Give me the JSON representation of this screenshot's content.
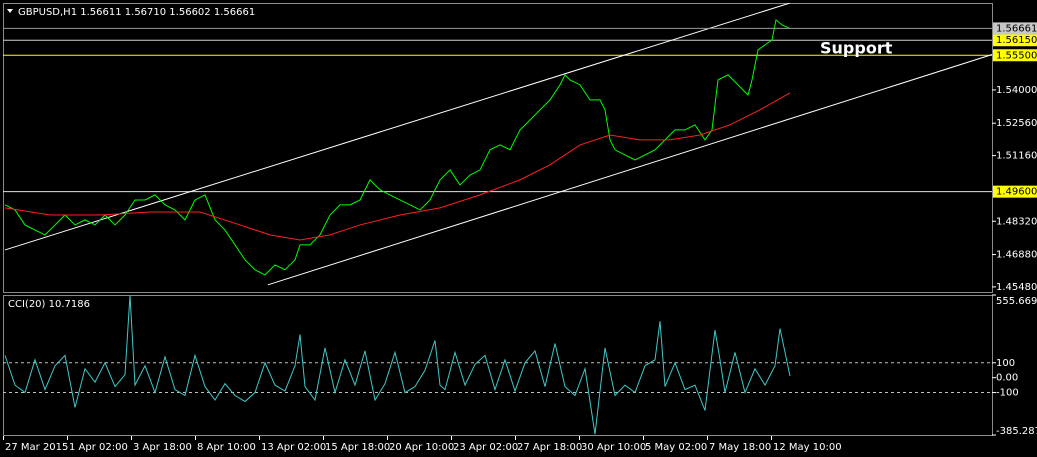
{
  "chart_data": [
    {
      "type": "line",
      "title": "GBPUSD,H1  1.56611 1.56710 1.56602 1.56661",
      "annotations": [
        "Support"
      ],
      "xlim": [
        0,
        989
      ],
      "ylim": [
        1.4526,
        1.5776
      ],
      "yticks": [
        {
          "value": 1.54,
          "label": "1.54000"
        },
        {
          "value": 1.5256,
          "label": "1.52560"
        },
        {
          "value": 1.5116,
          "label": "1.51160"
        },
        {
          "value": 1.4832,
          "label": "1.48320"
        },
        {
          "value": 1.4688,
          "label": "1.46880"
        },
        {
          "value": 1.4548,
          "label": "1.45480"
        }
      ],
      "last": {
        "value": 1.56661,
        "label": "1.56661",
        "color": "#9a9a9a"
      },
      "levels": [
        {
          "value": 1.5615,
          "label": "1.56150",
          "color": "#d0d0d0"
        },
        {
          "value": 1.555,
          "label": "1.55500",
          "color": "#ffff00"
        },
        {
          "value": 1.496,
          "label": "1.49600",
          "color": "#e0e0e0"
        }
      ],
      "trendlines": [
        {
          "color": "#ffffff",
          "x": [
            2,
            787
          ],
          "values": [
            1.4708,
            1.5776
          ]
        },
        {
          "color": "#ffffff",
          "x": [
            265,
            997
          ],
          "values": [
            1.4557,
            1.5564
          ]
        }
      ],
      "series": [
        {
          "color": "#00ff00",
          "x": [
            2,
            12,
            22,
            32,
            42,
            52,
            62,
            72,
            82,
            92,
            102,
            112,
            122,
            132,
            142,
            152,
            162,
            172,
            182,
            192,
            202,
            212,
            222,
            232,
            242,
            252,
            262,
            272,
            282,
            292,
            297,
            307,
            317,
            327,
            337,
            347,
            357,
            367,
            377,
            387,
            397,
            407,
            417,
            427,
            437,
            447,
            457,
            467,
            477,
            487,
            497,
            507,
            517,
            527,
            537,
            547,
            557,
            562,
            567,
            577,
            587,
            597,
            602,
            607,
            612,
            622,
            632,
            642,
            652,
            662,
            672,
            682,
            692,
            702,
            709,
            715,
            725,
            735,
            745,
            749,
            755,
            762,
            769,
            773,
            779,
            787
          ],
          "values": [
            1.4903,
            1.4881,
            1.4816,
            1.4794,
            1.4773,
            1.4816,
            1.4859,
            1.4816,
            1.4838,
            1.4816,
            1.4859,
            1.4816,
            1.4859,
            1.4924,
            1.4924,
            1.4946,
            1.4903,
            1.4881,
            1.4838,
            1.4924,
            1.4946,
            1.4838,
            1.4794,
            1.473,
            1.4665,
            1.4622,
            1.46,
            1.4643,
            1.4622,
            1.4665,
            1.473,
            1.473,
            1.4773,
            1.4859,
            1.4903,
            1.4903,
            1.4924,
            1.5011,
            1.4968,
            1.4946,
            1.4924,
            1.4903,
            1.4881,
            1.4924,
            1.5011,
            1.5054,
            1.4989,
            1.5032,
            1.5054,
            1.5141,
            1.5162,
            1.5141,
            1.5227,
            1.527,
            1.5314,
            1.5357,
            1.5422,
            1.5465,
            1.5443,
            1.5422,
            1.5357,
            1.5357,
            1.5314,
            1.5184,
            1.5141,
            1.5119,
            1.5097,
            1.5119,
            1.5141,
            1.5184,
            1.5227,
            1.5227,
            1.5249,
            1.5184,
            1.5227,
            1.5443,
            1.5465,
            1.5422,
            1.5378,
            1.5443,
            1.5573,
            1.5595,
            1.5616,
            1.5703,
            1.5681,
            1.56661
          ]
        },
        {
          "color": "#ff2020",
          "x": [
            2,
            47,
            97,
            147,
            197,
            237,
            267,
            297,
            327,
            357,
            397,
            437,
            477,
            517,
            547,
            577,
            607,
            637,
            667,
            697,
            727,
            757,
            787
          ],
          "values": [
            1.489,
            1.4859,
            1.4859,
            1.4872,
            1.4872,
            1.4816,
            1.4773,
            1.4751,
            1.4773,
            1.4816,
            1.4859,
            1.489,
            1.4946,
            1.5011,
            1.5076,
            1.5162,
            1.5205,
            1.5184,
            1.5184,
            1.5205,
            1.5249,
            1.5314,
            1.5387
          ]
        }
      ]
    },
    {
      "type": "line",
      "title": "CCI(20) 10.7186",
      "xlim": [
        0,
        989
      ],
      "ylim": [
        -385.2873,
        555.6696
      ],
      "yticks": [
        555.6696,
        100,
        {
          "value": 0,
          "label": "0.00"
        },
        -100,
        -385.2873
      ],
      "levels": [
        100,
        -100
      ],
      "xticks": [
        {
          "value": 0,
          "label": "27 Mar 2015"
        },
        {
          "value": 64,
          "label": "1 Apr 02:00"
        },
        {
          "value": 128,
          "label": "3 Apr 18:00"
        },
        {
          "value": 192,
          "label": "8 Apr 10:00"
        },
        {
          "value": 256,
          "label": "13 Apr 02:00"
        },
        {
          "value": 320,
          "label": "15 Apr 18:00"
        },
        {
          "value": 384,
          "label": "20 Apr 10:00"
        },
        {
          "value": 448,
          "label": "23 Apr 02:00"
        },
        {
          "value": 512,
          "label": "27 Apr 18:00"
        },
        {
          "value": 576,
          "label": "30 Apr 10:00"
        },
        {
          "value": 640,
          "label": "5 May 02:00"
        },
        {
          "value": 704,
          "label": "7 May 18:00"
        },
        {
          "value": 768,
          "label": "12 May 10:00"
        }
      ],
      "series": [
        {
          "color": "#40c8c8",
          "x": [
            2,
            12,
            22,
            32,
            42,
            52,
            62,
            72,
            82,
            92,
            102,
            112,
            122,
            127,
            132,
            142,
            152,
            162,
            172,
            182,
            192,
            202,
            212,
            222,
            232,
            242,
            252,
            262,
            272,
            282,
            292,
            297,
            302,
            312,
            322,
            332,
            342,
            352,
            362,
            372,
            382,
            392,
            402,
            412,
            422,
            432,
            437,
            442,
            452,
            462,
            472,
            482,
            492,
            502,
            512,
            522,
            532,
            542,
            552,
            562,
            572,
            582,
            592,
            602,
            612,
            622,
            632,
            642,
            652,
            657,
            662,
            672,
            682,
            692,
            702,
            712,
            717,
            722,
            732,
            742,
            752,
            762,
            772,
            777,
            787
          ],
          "values": [
            150,
            -50,
            -100,
            120,
            -80,
            80,
            150,
            -200,
            60,
            -30,
            100,
            -60,
            20,
            555,
            -50,
            80,
            -100,
            140,
            -80,
            -120,
            150,
            -60,
            -150,
            -40,
            -120,
            -160,
            -100,
            100,
            -50,
            -90,
            80,
            290,
            -60,
            -150,
            200,
            -100,
            120,
            -50,
            180,
            -150,
            -40,
            170,
            -100,
            -60,
            50,
            250,
            -50,
            -80,
            170,
            -50,
            90,
            150,
            -80,
            120,
            -90,
            100,
            180,
            -60,
            230,
            -60,
            -120,
            60,
            -380,
            200,
            -120,
            -50,
            -100,
            80,
            120,
            380,
            -60,
            100,
            -80,
            -50,
            -220,
            320,
            120,
            -100,
            170,
            -100,
            60,
            -50,
            80,
            330,
            10.7186
          ]
        }
      ]
    }
  ]
}
